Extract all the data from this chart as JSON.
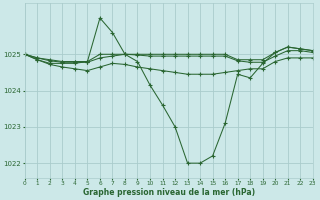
{
  "title": "Graphe pression niveau de la mer (hPa)",
  "bg_color": "#cce8e8",
  "grid_color": "#aacccc",
  "line_color": "#2a6632",
  "xlim": [
    0,
    23
  ],
  "ylim": [
    1021.6,
    1026.4
  ],
  "yticks": [
    1022,
    1023,
    1024,
    1025
  ],
  "xticks": [
    0,
    1,
    2,
    3,
    4,
    5,
    6,
    7,
    8,
    9,
    10,
    11,
    12,
    13,
    14,
    15,
    16,
    17,
    18,
    19,
    20,
    21,
    22,
    23
  ],
  "series": [
    {
      "x": [
        0,
        1,
        2,
        3,
        4,
        5,
        6,
        7,
        8,
        9,
        10,
        11,
        12,
        13,
        14,
        15,
        16,
        17,
        18,
        19,
        20,
        21,
        22,
        23
      ],
      "y": [
        1025.0,
        1024.85,
        1024.75,
        1024.75,
        1024.75,
        1024.8,
        1026.0,
        1025.6,
        1025.0,
        1024.8,
        1024.15,
        1023.6,
        1023.0,
        1022.0,
        1022.0,
        1022.2,
        1023.1,
        1024.45,
        1024.35,
        1024.75,
        1025.05,
        1025.2,
        1025.15,
        1025.1
      ]
    },
    {
      "x": [
        0,
        1,
        2,
        3,
        4,
        5,
        6,
        7,
        8,
        9,
        10,
        11,
        12,
        13,
        14,
        15,
        16,
        17,
        18,
        19,
        20,
        21,
        22,
        23
      ],
      "y": [
        1025.0,
        1024.9,
        1024.85,
        1024.8,
        1024.8,
        1024.8,
        1025.0,
        1025.0,
        1025.0,
        1025.0,
        1025.0,
        1025.0,
        1025.0,
        1025.0,
        1025.0,
        1025.0,
        1025.0,
        1024.85,
        1024.85,
        1024.85,
        1025.05,
        1025.2,
        1025.15,
        1025.1
      ]
    },
    {
      "x": [
        0,
        1,
        2,
        3,
        4,
        5,
        6,
        7,
        8,
        9,
        10,
        11,
        12,
        13,
        14,
        15,
        16,
        17,
        18,
        19,
        20,
        21,
        22,
        23
      ],
      "y": [
        1025.0,
        1024.9,
        1024.82,
        1024.78,
        1024.78,
        1024.78,
        1024.9,
        1024.95,
        1025.0,
        1024.98,
        1024.95,
        1024.95,
        1024.95,
        1024.95,
        1024.95,
        1024.95,
        1024.95,
        1024.82,
        1024.78,
        1024.78,
        1024.95,
        1025.1,
        1025.1,
        1025.05
      ]
    },
    {
      "x": [
        0,
        1,
        2,
        3,
        4,
        5,
        6,
        7,
        8,
        9,
        10,
        11,
        12,
        13,
        14,
        15,
        16,
        17,
        18,
        19,
        20,
        21,
        22,
        23
      ],
      "y": [
        1025.0,
        1024.85,
        1024.72,
        1024.65,
        1024.6,
        1024.55,
        1024.65,
        1024.75,
        1024.72,
        1024.65,
        1024.6,
        1024.55,
        1024.5,
        1024.45,
        1024.45,
        1024.45,
        1024.5,
        1024.55,
        1024.6,
        1024.6,
        1024.8,
        1024.9,
        1024.9,
        1024.9
      ]
    }
  ]
}
